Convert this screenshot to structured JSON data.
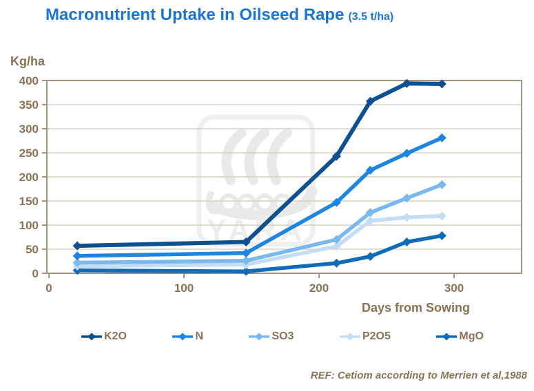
{
  "title": {
    "main": "Macronutrient Uptake in Oilseed Rape",
    "sub": "(3.5 t/ha)"
  },
  "y_axis_unit_label": "Kg/ha",
  "x_axis_label": "Days from Sowing",
  "reference": "REF: Cetiom according to Merrien et al,1988",
  "watermark_text": "YARA",
  "colors": {
    "title_blue": "#1a76d2",
    "axis_text_brown": "#8a7355",
    "frame": "#a2937f",
    "gridline": "#d8cfc4",
    "watermark_gray": "#e9e9e9"
  },
  "chart_data": {
    "type": "line",
    "title": "Macronutrient Uptake in Oilseed Rape (3.5 t/ha)",
    "xlabel": "Days from Sowing",
    "ylabel": "Kg/ha",
    "x": [
      21,
      146,
      213,
      238,
      265,
      291
    ],
    "series": [
      {
        "name": "K2O",
        "color": "#0e5191",
        "values": [
          57,
          65,
          243,
          357,
          394,
          393
        ]
      },
      {
        "name": "N",
        "color": "#1d86e0",
        "values": [
          36,
          42,
          147,
          214,
          249,
          281
        ]
      },
      {
        "name": "SO3",
        "color": "#79b9ed",
        "values": [
          22,
          26,
          70,
          126,
          156,
          184
        ]
      },
      {
        "name": "P2O5",
        "color": "#c3ddf5",
        "values": [
          15,
          18,
          56,
          109,
          116,
          119
        ]
      },
      {
        "name": "MgO",
        "color": "#0f6cb8",
        "values": [
          6,
          4,
          21,
          35,
          65,
          78
        ]
      }
    ],
    "xlim": [
      0,
      350
    ],
    "ylim": [
      0,
      400
    ],
    "x_ticks": [
      0,
      100,
      200,
      300
    ],
    "y_ticks": [
      0,
      50,
      100,
      150,
      200,
      250,
      300,
      350,
      400
    ],
    "grid": true,
    "legend_position": "bottom"
  }
}
